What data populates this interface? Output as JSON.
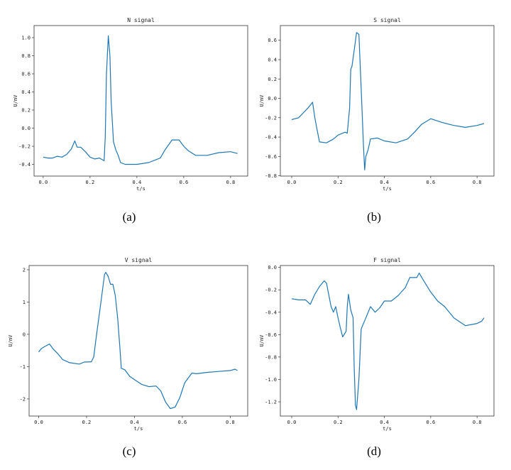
{
  "chart_data": [
    {
      "type": "line",
      "title": "N signal",
      "xlabel": "t/s",
      "ylabel": "U/mV",
      "caption": "(a)",
      "xlim": [
        -0.039,
        0.873
      ],
      "ylim": [
        -0.529,
        1.133
      ],
      "xticks": [
        0.0,
        0.2,
        0.4,
        0.6,
        0.8
      ],
      "xtick_labels": [
        "0.0",
        "0.2",
        "0.4",
        "0.6",
        "0.8"
      ],
      "yticks": [
        -0.4,
        -0.2,
        0.0,
        0.2,
        0.4,
        0.6,
        0.8,
        1.0
      ],
      "ytick_labels": [
        "-0.4",
        "-0.2",
        "0.0",
        "0.2",
        "0.4",
        "0.6",
        "0.8",
        "1.0"
      ],
      "grid": false,
      "color": "#1f77b4",
      "x": [
        0,
        0.02,
        0.04,
        0.06,
        0.08,
        0.1,
        0.12,
        0.135,
        0.145,
        0.16,
        0.18,
        0.2,
        0.22,
        0.24,
        0.26,
        0.265,
        0.27,
        0.278,
        0.285,
        0.29,
        0.3,
        0.31,
        0.32,
        0.33,
        0.35,
        0.4,
        0.45,
        0.5,
        0.52,
        0.55,
        0.58,
        0.6,
        0.62,
        0.65,
        0.7,
        0.75,
        0.8,
        0.83
      ],
      "y": [
        -0.32,
        -0.33,
        -0.33,
        -0.31,
        -0.32,
        -0.29,
        -0.23,
        -0.14,
        -0.21,
        -0.21,
        -0.26,
        -0.32,
        -0.34,
        -0.33,
        -0.36,
        -0.1,
        0.6,
        1.02,
        0.8,
        0.3,
        -0.15,
        -0.24,
        -0.3,
        -0.38,
        -0.4,
        -0.4,
        -0.38,
        -0.33,
        -0.24,
        -0.13,
        -0.13,
        -0.2,
        -0.25,
        -0.3,
        -0.3,
        -0.27,
        -0.26,
        -0.28
      ]
    },
    {
      "type": "line",
      "title": "S signal",
      "xlabel": "t/s",
      "ylabel": "U/mV",
      "caption": "(b)",
      "xlim": [
        -0.049,
        0.873
      ],
      "ylim": [
        -0.803,
        0.752
      ],
      "xticks": [
        0.0,
        0.2,
        0.4,
        0.6,
        0.8
      ],
      "xtick_labels": [
        "0.0",
        "0.2",
        "0.4",
        "0.6",
        "0.8"
      ],
      "yticks": [
        -0.8,
        -0.6,
        -0.4,
        -0.2,
        0.0,
        0.2,
        0.4,
        0.6
      ],
      "ytick_labels": [
        "-0.8",
        "-0.6",
        "-0.4",
        "-0.2",
        "0.0",
        "0.2",
        "0.4",
        "0.6"
      ],
      "grid": false,
      "color": "#1f77b4",
      "x": [
        0,
        0.03,
        0.05,
        0.07,
        0.09,
        0.1,
        0.11,
        0.12,
        0.15,
        0.18,
        0.2,
        0.23,
        0.24,
        0.25,
        0.255,
        0.26,
        0.27,
        0.28,
        0.29,
        0.3,
        0.31,
        0.315,
        0.32,
        0.33,
        0.34,
        0.37,
        0.4,
        0.45,
        0.5,
        0.53,
        0.56,
        0.6,
        0.65,
        0.7,
        0.75,
        0.8,
        0.83
      ],
      "y": [
        -0.22,
        -0.2,
        -0.15,
        -0.1,
        -0.04,
        -0.2,
        -0.33,
        -0.45,
        -0.46,
        -0.42,
        -0.38,
        -0.35,
        -0.36,
        -0.1,
        0.3,
        0.33,
        0.5,
        0.68,
        0.66,
        0.1,
        -0.5,
        -0.74,
        -0.6,
        -0.53,
        -0.42,
        -0.41,
        -0.44,
        -0.46,
        -0.42,
        -0.35,
        -0.27,
        -0.21,
        -0.25,
        -0.28,
        -0.3,
        -0.28,
        -0.26
      ]
    },
    {
      "type": "line",
      "title": "V signal",
      "xlabel": "t/s",
      "ylabel": "U/mV",
      "caption": "(c)",
      "xlim": [
        -0.04,
        0.873
      ],
      "ylim": [
        -2.53,
        2.13
      ],
      "xticks": [
        0.0,
        0.2,
        0.4,
        0.6,
        0.8
      ],
      "xtick_labels": [
        "0.0",
        "0.2",
        "0.4",
        "0.6",
        "0.8"
      ],
      "yticks": [
        -2,
        -1,
        0,
        1,
        2
      ],
      "ytick_labels": [
        "-2",
        "-1",
        "0",
        "1",
        "2"
      ],
      "grid": false,
      "color": "#1f77b4",
      "x": [
        0,
        0.01,
        0.02,
        0.045,
        0.06,
        0.08,
        0.1,
        0.13,
        0.17,
        0.19,
        0.22,
        0.23,
        0.24,
        0.26,
        0.275,
        0.28,
        0.29,
        0.3,
        0.31,
        0.32,
        0.33,
        0.34,
        0.345,
        0.36,
        0.38,
        0.4,
        0.43,
        0.46,
        0.49,
        0.51,
        0.53,
        0.55,
        0.57,
        0.59,
        0.61,
        0.64,
        0.66,
        0.7,
        0.75,
        0.8,
        0.82,
        0.83
      ],
      "y": [
        -0.55,
        -0.45,
        -0.4,
        -0.3,
        -0.45,
        -0.6,
        -0.78,
        -0.88,
        -0.92,
        -0.86,
        -0.85,
        -0.7,
        -0.1,
        1.0,
        1.85,
        1.92,
        1.8,
        1.55,
        1.55,
        1.2,
        0.5,
        -0.5,
        -1.05,
        -1.1,
        -1.3,
        -1.4,
        -1.55,
        -1.62,
        -1.6,
        -1.75,
        -2.1,
        -2.3,
        -2.25,
        -1.95,
        -1.5,
        -1.2,
        -1.22,
        -1.18,
        -1.15,
        -1.12,
        -1.08,
        -1.12
      ]
    },
    {
      "type": "line",
      "title": "F signal",
      "xlabel": "t/s",
      "ylabel": "U/mV",
      "caption": "(d)",
      "xlim": [
        -0.049,
        0.873
      ],
      "ylim": [
        -1.327,
        0.017
      ],
      "xticks": [
        0.0,
        0.2,
        0.4,
        0.6,
        0.8
      ],
      "xtick_labels": [
        "0.0",
        "0.2",
        "0.4",
        "0.6",
        "0.8"
      ],
      "yticks": [
        -1.2,
        -1.0,
        -0.8,
        -0.6,
        -0.4,
        -0.2,
        0.0
      ],
      "ytick_labels": [
        "-1.2",
        "-1.0",
        "-0.8",
        "-0.6",
        "-0.4",
        "-0.2",
        "0.0"
      ],
      "grid": false,
      "color": "#1f77b4",
      "x": [
        0,
        0.03,
        0.06,
        0.08,
        0.1,
        0.12,
        0.14,
        0.15,
        0.17,
        0.18,
        0.19,
        0.2,
        0.21,
        0.22,
        0.235,
        0.24,
        0.245,
        0.255,
        0.265,
        0.27,
        0.275,
        0.28,
        0.29,
        0.3,
        0.32,
        0.34,
        0.36,
        0.38,
        0.4,
        0.43,
        0.46,
        0.49,
        0.51,
        0.54,
        0.55,
        0.57,
        0.6,
        0.63,
        0.66,
        0.7,
        0.75,
        0.8,
        0.82,
        0.83
      ],
      "y": [
        -0.28,
        -0.29,
        -0.29,
        -0.33,
        -0.24,
        -0.17,
        -0.12,
        -0.14,
        -0.35,
        -0.4,
        -0.35,
        -0.45,
        -0.54,
        -0.62,
        -0.57,
        -0.35,
        -0.24,
        -0.38,
        -0.45,
        -0.9,
        -1.23,
        -1.27,
        -1.0,
        -0.55,
        -0.45,
        -0.35,
        -0.4,
        -0.36,
        -0.3,
        -0.3,
        -0.25,
        -0.18,
        -0.09,
        -0.09,
        -0.05,
        -0.12,
        -0.22,
        -0.3,
        -0.35,
        -0.45,
        -0.52,
        -0.5,
        -0.48,
        -0.45
      ]
    }
  ]
}
